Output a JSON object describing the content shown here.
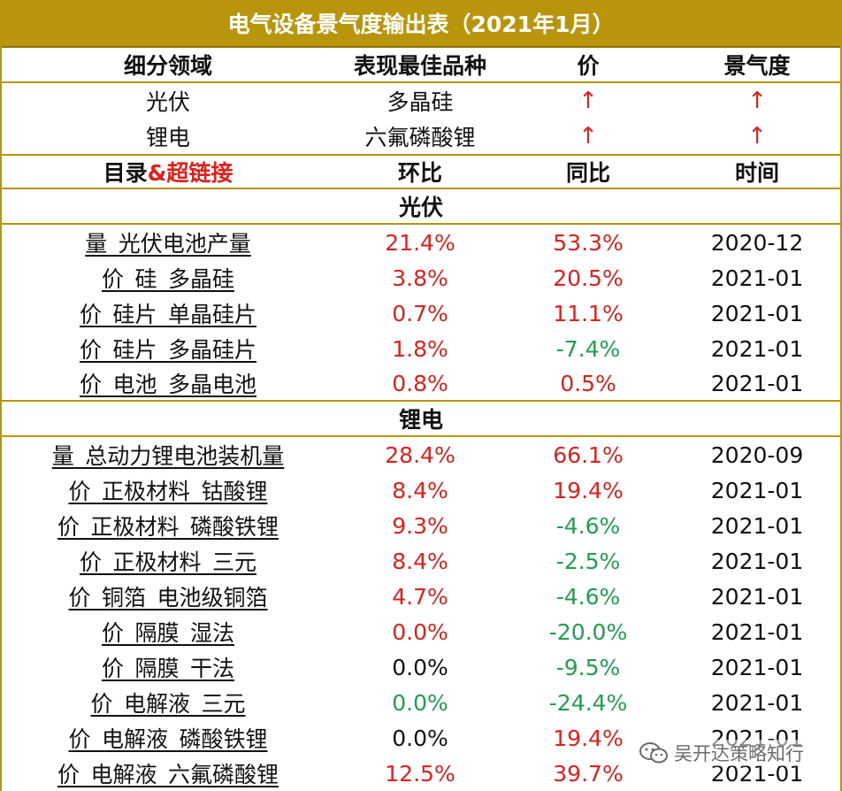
{
  "title": "电气设备景气度输出表（2021年1月）",
  "summary_header": [
    "细分领域",
    "表现最佳品种",
    "价",
    "景气度"
  ],
  "summary_rows": [
    {
      "sector": "光伏",
      "best": "多晶硅",
      "price": "↑",
      "prosperity": "↑"
    },
    {
      "sector": "锂电",
      "best": "六氟磷酸锂",
      "price": "↑",
      "prosperity": "↑"
    }
  ],
  "detail_header": {
    "catalog": "目录",
    "catalog_suffix": "&超链接",
    "mom": "环比",
    "yoy": "同比",
    "time": "时间"
  },
  "sections": [
    {
      "name": "光伏",
      "rows": [
        {
          "item": "量_光伏电池产量",
          "mom": "21.4%",
          "mom_color": "red",
          "yoy": "53.3%",
          "yoy_color": "red",
          "time": "2020-12"
        },
        {
          "item": "价_硅_多晶硅",
          "mom": "3.8%",
          "mom_color": "red",
          "yoy": "20.5%",
          "yoy_color": "red",
          "time": "2021-01"
        },
        {
          "item": "价_硅片_单晶硅片",
          "mom": "0.7%",
          "mom_color": "red",
          "yoy": "11.1%",
          "yoy_color": "red",
          "time": "2021-01"
        },
        {
          "item": "价_硅片_多晶硅片",
          "mom": "1.8%",
          "mom_color": "red",
          "yoy": "-7.4%",
          "yoy_color": "green",
          "time": "2021-01"
        },
        {
          "item": "价_电池_多晶电池",
          "mom": "0.8%",
          "mom_color": "red",
          "yoy": "0.5%",
          "yoy_color": "red",
          "time": "2021-01"
        }
      ]
    },
    {
      "name": "锂电",
      "rows": [
        {
          "item": "量_总动力锂电池装机量",
          "mom": "28.4%",
          "mom_color": "red",
          "yoy": "66.1%",
          "yoy_color": "red",
          "time": "2020-09"
        },
        {
          "item": "价_正极材料_钴酸锂",
          "mom": "8.4%",
          "mom_color": "red",
          "yoy": "19.4%",
          "yoy_color": "red",
          "time": "2021-01"
        },
        {
          "item": "价_正极材料_磷酸铁锂",
          "mom": "9.3%",
          "mom_color": "red",
          "yoy": "-4.6%",
          "yoy_color": "green",
          "time": "2021-01"
        },
        {
          "item": "价_正极材料_三元",
          "mom": "8.4%",
          "mom_color": "red",
          "yoy": "-2.5%",
          "yoy_color": "green",
          "time": "2021-01"
        },
        {
          "item": "价_铜箔_电池级铜箔",
          "mom": "4.7%",
          "mom_color": "red",
          "yoy": "-4.6%",
          "yoy_color": "green",
          "time": "2021-01"
        },
        {
          "item": "价_隔膜_湿法",
          "mom": "0.0%",
          "mom_color": "red",
          "yoy": "-20.0%",
          "yoy_color": "green",
          "time": "2021-01"
        },
        {
          "item": "价_隔膜_干法",
          "mom": "0.0%",
          "mom_color": "black",
          "yoy": "-9.5%",
          "yoy_color": "green",
          "time": "2021-01"
        },
        {
          "item": "价_电解液_三元",
          "mom": "0.0%",
          "mom_color": "green",
          "yoy": "-24.4%",
          "yoy_color": "green",
          "time": "2021-01"
        },
        {
          "item": "价_电解液_磷酸铁锂",
          "mom": "0.0%",
          "mom_color": "black",
          "yoy": "19.4%",
          "yoy_color": "red",
          "time": "2021-01"
        },
        {
          "item": "价_电解液_六氟磷酸锂",
          "mom": "12.5%",
          "mom_color": "red",
          "yoy": "39.7%",
          "yoy_color": "red",
          "time": "2021-01"
        }
      ]
    }
  ],
  "watermark": {
    "text": "吴开达策略知行",
    "icon": "wechat-icon"
  },
  "colors": {
    "header_gold": "#b8950a",
    "up_red": "#e0201b",
    "down_green": "#1ea050"
  }
}
